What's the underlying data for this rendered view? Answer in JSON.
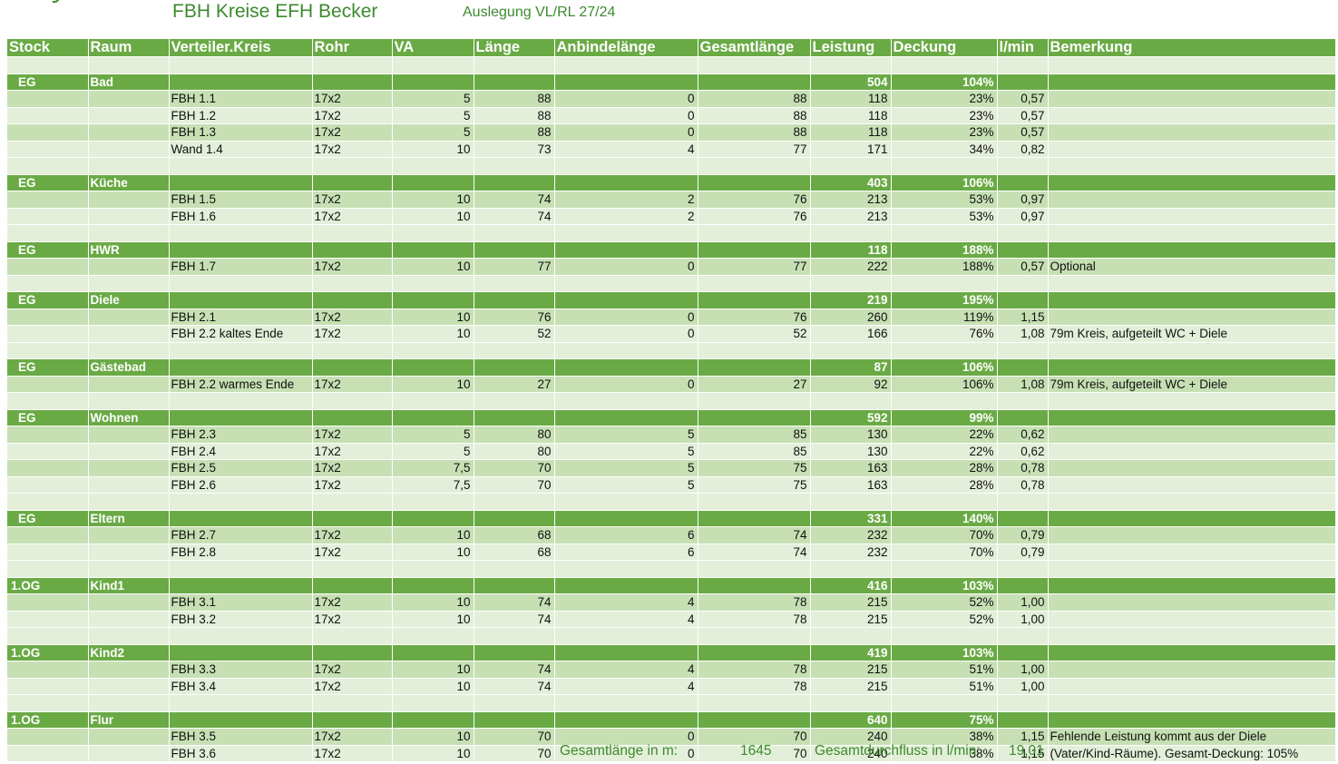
{
  "title": "FBH Kreise EFH Becker",
  "subtitle": "Auslegung VL/RL 27/24",
  "headers": [
    "Stock",
    "Raum",
    "Verteiler.Kreis",
    "Rohr",
    "VA",
    "Länge",
    "Anbindelänge",
    "Gesamtlänge",
    "Leistung",
    "Deckung",
    "l/min",
    "Bemerkung"
  ],
  "rooms": [
    {
      "stock": "EG",
      "raum": "Bad",
      "leistung": "504",
      "deckung": "104%",
      "circuits": [
        {
          "kreis": "FBH 1.1",
          "rohr": "17x2",
          "va": "5",
          "laenge": "88",
          "anbind": "0",
          "gesamt": "88",
          "leistung": "118",
          "deckung": "23%",
          "lmin": "0,57",
          "bemerkung": ""
        },
        {
          "kreis": "FBH 1.2",
          "rohr": "17x2",
          "va": "5",
          "laenge": "88",
          "anbind": "0",
          "gesamt": "88",
          "leistung": "118",
          "deckung": "23%",
          "lmin": "0,57",
          "bemerkung": ""
        },
        {
          "kreis": "FBH 1.3",
          "rohr": "17x2",
          "va": "5",
          "laenge": "88",
          "anbind": "0",
          "gesamt": "88",
          "leistung": "118",
          "deckung": "23%",
          "lmin": "0,57",
          "bemerkung": ""
        },
        {
          "kreis": "Wand 1.4",
          "rohr": "17x2",
          "va": "10",
          "laenge": "73",
          "anbind": "4",
          "gesamt": "77",
          "leistung": "171",
          "deckung": "34%",
          "lmin": "0,82",
          "bemerkung": ""
        }
      ]
    },
    {
      "stock": "EG",
      "raum": "Küche",
      "leistung": "403",
      "deckung": "106%",
      "circuits": [
        {
          "kreis": "FBH 1.5",
          "rohr": "17x2",
          "va": "10",
          "laenge": "74",
          "anbind": "2",
          "gesamt": "76",
          "leistung": "213",
          "deckung": "53%",
          "lmin": "0,97",
          "bemerkung": ""
        },
        {
          "kreis": "FBH 1.6",
          "rohr": "17x2",
          "va": "10",
          "laenge": "74",
          "anbind": "2",
          "gesamt": "76",
          "leistung": "213",
          "deckung": "53%",
          "lmin": "0,97",
          "bemerkung": ""
        }
      ]
    },
    {
      "stock": "EG",
      "raum": "HWR",
      "leistung": "118",
      "deckung": "188%",
      "circuits": [
        {
          "kreis": "FBH 1.7",
          "rohr": "17x2",
          "va": "10",
          "laenge": "77",
          "anbind": "0",
          "gesamt": "77",
          "leistung": "222",
          "deckung": "188%",
          "lmin": "0,57",
          "bemerkung": "Optional"
        }
      ]
    },
    {
      "stock": "EG",
      "raum": "Diele",
      "leistung": "219",
      "deckung": "195%",
      "circuits": [
        {
          "kreis": "FBH 2.1",
          "rohr": "17x2",
          "va": "10",
          "laenge": "76",
          "anbind": "0",
          "gesamt": "76",
          "leistung": "260",
          "deckung": "119%",
          "lmin": "1,15",
          "bemerkung": ""
        },
        {
          "kreis": "FBH 2.2 kaltes Ende",
          "rohr": "17x2",
          "va": "10",
          "laenge": "52",
          "anbind": "0",
          "gesamt": "52",
          "leistung": "166",
          "deckung": "76%",
          "lmin": "1,08",
          "bemerkung": "79m Kreis, aufgeteilt WC + Diele"
        }
      ]
    },
    {
      "stock": "EG",
      "raum": "Gästebad",
      "leistung": "87",
      "deckung": "106%",
      "circuits": [
        {
          "kreis": "FBH 2.2 warmes Ende",
          "rohr": "17x2",
          "va": "10",
          "laenge": "27",
          "anbind": "0",
          "gesamt": "27",
          "leistung": "92",
          "deckung": "106%",
          "lmin": "1,08",
          "bemerkung": "79m Kreis, aufgeteilt WC + Diele"
        }
      ]
    },
    {
      "stock": "EG",
      "raum": "Wohnen",
      "leistung": "592",
      "deckung": "99%",
      "circuits": [
        {
          "kreis": "FBH 2.3",
          "rohr": "17x2",
          "va": "5",
          "laenge": "80",
          "anbind": "5",
          "gesamt": "85",
          "leistung": "130",
          "deckung": "22%",
          "lmin": "0,62",
          "bemerkung": ""
        },
        {
          "kreis": "FBH 2.4",
          "rohr": "17x2",
          "va": "5",
          "laenge": "80",
          "anbind": "5",
          "gesamt": "85",
          "leistung": "130",
          "deckung": "22%",
          "lmin": "0,62",
          "bemerkung": ""
        },
        {
          "kreis": "FBH 2.5",
          "rohr": "17x2",
          "va": "7,5",
          "laenge": "70",
          "anbind": "5",
          "gesamt": "75",
          "leistung": "163",
          "deckung": "28%",
          "lmin": "0,78",
          "bemerkung": ""
        },
        {
          "kreis": "FBH 2.6",
          "rohr": "17x2",
          "va": "7,5",
          "laenge": "70",
          "anbind": "5",
          "gesamt": "75",
          "leistung": "163",
          "deckung": "28%",
          "lmin": "0,78",
          "bemerkung": ""
        }
      ]
    },
    {
      "stock": "EG",
      "raum": "Eltern",
      "leistung": "331",
      "deckung": "140%",
      "circuits": [
        {
          "kreis": "FBH 2.7",
          "rohr": "17x2",
          "va": "10",
          "laenge": "68",
          "anbind": "6",
          "gesamt": "74",
          "leistung": "232",
          "deckung": "70%",
          "lmin": "0,79",
          "bemerkung": ""
        },
        {
          "kreis": "FBH 2.8",
          "rohr": "17x2",
          "va": "10",
          "laenge": "68",
          "anbind": "6",
          "gesamt": "74",
          "leistung": "232",
          "deckung": "70%",
          "lmin": "0,79",
          "bemerkung": ""
        }
      ]
    },
    {
      "stock": "1.OG",
      "raum": "Kind1",
      "leistung": "416",
      "deckung": "103%",
      "circuits": [
        {
          "kreis": "FBH 3.1",
          "rohr": "17x2",
          "va": "10",
          "laenge": "74",
          "anbind": "4",
          "gesamt": "78",
          "leistung": "215",
          "deckung": "52%",
          "lmin": "1,00",
          "bemerkung": ""
        },
        {
          "kreis": "FBH 3.2",
          "rohr": "17x2",
          "va": "10",
          "laenge": "74",
          "anbind": "4",
          "gesamt": "78",
          "leistung": "215",
          "deckung": "52%",
          "lmin": "1,00",
          "bemerkung": ""
        }
      ]
    },
    {
      "stock": "1.OG",
      "raum": "Kind2",
      "leistung": "419",
      "deckung": "103%",
      "circuits": [
        {
          "kreis": "FBH 3.3",
          "rohr": "17x2",
          "va": "10",
          "laenge": "74",
          "anbind": "4",
          "gesamt": "78",
          "leistung": "215",
          "deckung": "51%",
          "lmin": "1,00",
          "bemerkung": ""
        },
        {
          "kreis": "FBH 3.4",
          "rohr": "17x2",
          "va": "10",
          "laenge": "74",
          "anbind": "4",
          "gesamt": "78",
          "leistung": "215",
          "deckung": "51%",
          "lmin": "1,00",
          "bemerkung": ""
        }
      ]
    },
    {
      "stock": "1.OG",
      "raum": "Flur",
      "leistung": "640",
      "deckung": "75%",
      "circuits": [
        {
          "kreis": "FBH 3.5",
          "rohr": "17x2",
          "va": "10",
          "laenge": "70",
          "anbind": "0",
          "gesamt": "70",
          "leistung": "240",
          "deckung": "38%",
          "lmin": "1,15",
          "bemerkung": "Fehlende Leistung kommt aus der Diele"
        },
        {
          "kreis": "FBH 3.6",
          "rohr": "17x2",
          "va": "10",
          "laenge": "70",
          "anbind": "0",
          "gesamt": "70",
          "leistung": "240",
          "deckung": "38%",
          "lmin": "1,15",
          "bemerkung": "(Vater/Kind-Räume). Gesamt-Deckung: 105%"
        }
      ]
    }
  ],
  "footer": {
    "gesamtlaenge_label": "Gesamtlänge in m:",
    "gesamtlaenge_value": "1645",
    "durchfluss_label": "Gesamtdurchfluss in l/min:",
    "durchfluss_value": "19,01"
  }
}
